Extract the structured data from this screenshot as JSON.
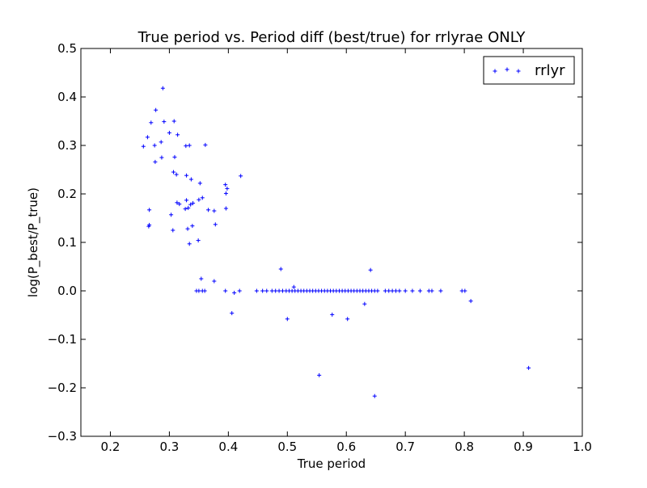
{
  "chart_data": {
    "type": "scatter",
    "title": "True period vs. Period diff (best/true) for rrlyrae ONLY",
    "xlabel": "True period",
    "ylabel": "log(P_best/P_true)",
    "xlim": [
      0.15,
      1.0
    ],
    "ylim": [
      -0.3,
      0.5
    ],
    "xticks": [
      "0.2",
      "0.3",
      "0.4",
      "0.5",
      "0.6",
      "0.7",
      "0.8",
      "0.9",
      "1.0"
    ],
    "xtick_values": [
      0.2,
      0.3,
      0.4,
      0.5,
      0.6,
      0.7,
      0.8,
      0.9,
      1.0
    ],
    "yticks": [
      "0.5",
      "0.4",
      "0.3",
      "0.2",
      "0.1",
      "0.0",
      "−0.1",
      "−0.2",
      "−0.3"
    ],
    "ytick_values": [
      0.5,
      0.4,
      0.3,
      0.2,
      0.1,
      0.0,
      -0.1,
      -0.2,
      -0.3
    ],
    "grid": false,
    "legend_position": "top-right",
    "series": [
      {
        "name": "rrlyr",
        "color": "#0000ff",
        "marker": "+",
        "points": [
          [
            0.289,
            0.418
          ],
          [
            0.277,
            0.373
          ],
          [
            0.269,
            0.347
          ],
          [
            0.291,
            0.349
          ],
          [
            0.308,
            0.35
          ],
          [
            0.3,
            0.326
          ],
          [
            0.314,
            0.322
          ],
          [
            0.263,
            0.317
          ],
          [
            0.286,
            0.307
          ],
          [
            0.256,
            0.298
          ],
          [
            0.275,
            0.3
          ],
          [
            0.328,
            0.299
          ],
          [
            0.334,
            0.3
          ],
          [
            0.361,
            0.301
          ],
          [
            0.287,
            0.275
          ],
          [
            0.309,
            0.276
          ],
          [
            0.276,
            0.266
          ],
          [
            0.307,
            0.245
          ],
          [
            0.312,
            0.24
          ],
          [
            0.329,
            0.238
          ],
          [
            0.337,
            0.23
          ],
          [
            0.421,
            0.237
          ],
          [
            0.352,
            0.222
          ],
          [
            0.395,
            0.219
          ],
          [
            0.398,
            0.211
          ],
          [
            0.396,
            0.201
          ],
          [
            0.356,
            0.192
          ],
          [
            0.35,
            0.188
          ],
          [
            0.329,
            0.187
          ],
          [
            0.313,
            0.182
          ],
          [
            0.317,
            0.179
          ],
          [
            0.34,
            0.181
          ],
          [
            0.336,
            0.178
          ],
          [
            0.332,
            0.171
          ],
          [
            0.327,
            0.169
          ],
          [
            0.366,
            0.167
          ],
          [
            0.376,
            0.165
          ],
          [
            0.266,
            0.167
          ],
          [
            0.396,
            0.17
          ],
          [
            0.303,
            0.157
          ],
          [
            0.378,
            0.137
          ],
          [
            0.339,
            0.134
          ],
          [
            0.266,
            0.136
          ],
          [
            0.265,
            0.133
          ],
          [
            0.331,
            0.128
          ],
          [
            0.306,
            0.125
          ],
          [
            0.349,
            0.104
          ],
          [
            0.334,
            0.097
          ],
          [
            0.489,
            0.045
          ],
          [
            0.641,
            0.043
          ],
          [
            0.354,
            0.025
          ],
          [
            0.376,
            0.02
          ],
          [
            0.511,
            0.008
          ],
          [
            0.346,
            0.0
          ],
          [
            0.35,
            0.0
          ],
          [
            0.356,
            0.0
          ],
          [
            0.36,
            0.0
          ],
          [
            0.395,
            0.0
          ],
          [
            0.419,
            0.0
          ],
          [
            0.448,
            0.0
          ],
          [
            0.458,
            0.0
          ],
          [
            0.465,
            0.0
          ],
          [
            0.474,
            0.0
          ],
          [
            0.48,
            0.0
          ],
          [
            0.486,
            0.0
          ],
          [
            0.492,
            0.0
          ],
          [
            0.498,
            0.0
          ],
          [
            0.503,
            0.0
          ],
          [
            0.508,
            0.0
          ],
          [
            0.513,
            0.0
          ],
          [
            0.518,
            0.0
          ],
          [
            0.523,
            0.0
          ],
          [
            0.528,
            0.0
          ],
          [
            0.533,
            0.0
          ],
          [
            0.538,
            0.0
          ],
          [
            0.543,
            0.0
          ],
          [
            0.548,
            0.0
          ],
          [
            0.553,
            0.0
          ],
          [
            0.558,
            0.0
          ],
          [
            0.563,
            0.0
          ],
          [
            0.568,
            0.0
          ],
          [
            0.573,
            0.0
          ],
          [
            0.578,
            0.0
          ],
          [
            0.583,
            0.0
          ],
          [
            0.588,
            0.0
          ],
          [
            0.593,
            0.0
          ],
          [
            0.598,
            0.0
          ],
          [
            0.603,
            0.0
          ],
          [
            0.608,
            0.0
          ],
          [
            0.613,
            0.0
          ],
          [
            0.618,
            0.0
          ],
          [
            0.623,
            0.0
          ],
          [
            0.628,
            0.0
          ],
          [
            0.633,
            0.0
          ],
          [
            0.638,
            0.0
          ],
          [
            0.643,
            0.0
          ],
          [
            0.648,
            0.0
          ],
          [
            0.653,
            0.0
          ],
          [
            0.666,
            0.0
          ],
          [
            0.672,
            0.0
          ],
          [
            0.678,
            0.0
          ],
          [
            0.684,
            0.0
          ],
          [
            0.69,
            0.0
          ],
          [
            0.7,
            0.0
          ],
          [
            0.712,
            0.0
          ],
          [
            0.725,
            0.0
          ],
          [
            0.74,
            0.0
          ],
          [
            0.745,
            0.0
          ],
          [
            0.76,
            0.0
          ],
          [
            0.796,
            0.0
          ],
          [
            0.801,
            0.0
          ],
          [
            0.41,
            -0.004
          ],
          [
            0.631,
            -0.027
          ],
          [
            0.811,
            -0.021
          ],
          [
            0.406,
            -0.046
          ],
          [
            0.576,
            -0.049
          ],
          [
            0.5,
            -0.058
          ],
          [
            0.602,
            -0.058
          ],
          [
            0.909,
            -0.159
          ],
          [
            0.554,
            -0.174
          ],
          [
            0.648,
            -0.217
          ]
        ]
      }
    ]
  }
}
